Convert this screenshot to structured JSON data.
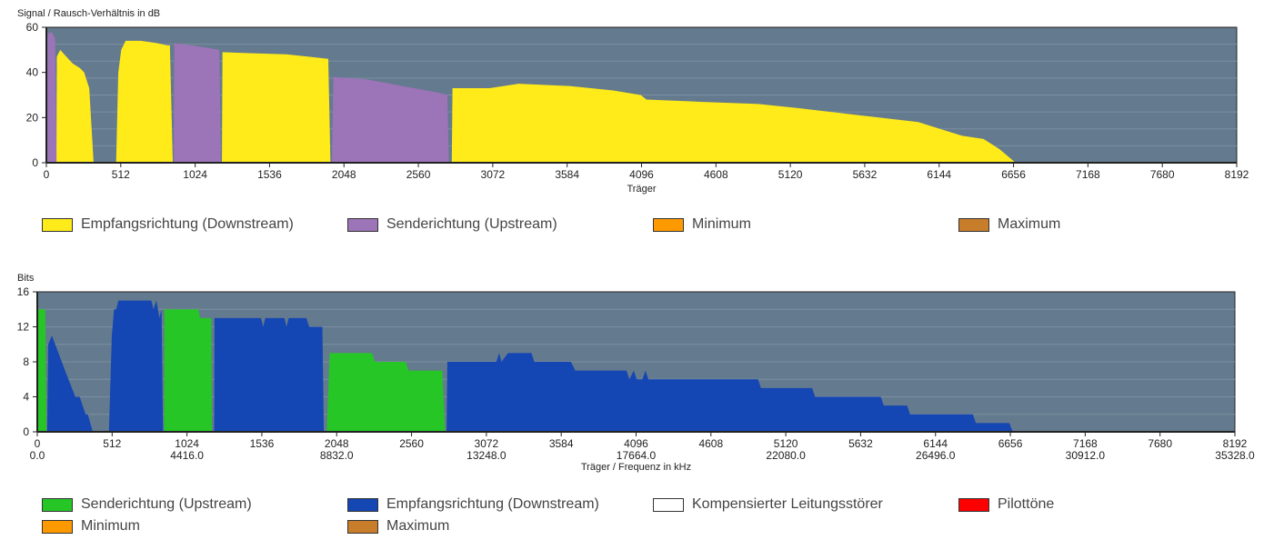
{
  "colors": {
    "plot_bg": "#647a8e",
    "grid": "#7b8fa1"
  },
  "chart_data": [
    {
      "type": "area",
      "title": "Signal / Rausch-Verhältnis in dB",
      "xlabel": "Träger",
      "ylabel": "",
      "xlim": [
        0,
        8192
      ],
      "ylim": [
        0,
        60
      ],
      "xticks": [
        0,
        512,
        1024,
        1536,
        2048,
        2560,
        3072,
        3584,
        4096,
        4608,
        5120,
        5632,
        6144,
        6656,
        7168,
        7680,
        8192
      ],
      "yticks": [
        0,
        20,
        40,
        60
      ],
      "grid": true,
      "series": [
        {
          "name": "Empfangsrichtung (Downstream)",
          "color": "#ffea1a",
          "segments": [
            [
              [
                69,
                0
              ],
              [
                72,
                47
              ],
              [
                95,
                50
              ],
              [
                180,
                44
              ],
              [
                230,
                42
              ],
              [
                260,
                40
              ],
              [
                285,
                35
              ],
              [
                295,
                33
              ],
              [
                325,
                0
              ]
            ],
            [
              [
                480,
                0
              ],
              [
                495,
                40
              ],
              [
                515,
                50
              ],
              [
                545,
                54
              ],
              [
                650,
                54
              ],
              [
                760,
                53
              ],
              [
                830,
                52
              ],
              [
                850,
                52
              ],
              [
                870,
                0
              ]
            ],
            [
              [
                1208,
                0
              ],
              [
                1212,
                49
              ],
              [
                1400,
                48.5
              ],
              [
                1650,
                48
              ],
              [
                1800,
                47
              ],
              [
                1940,
                46
              ],
              [
                1955,
                0
              ]
            ],
            [
              [
                2790,
                0
              ],
              [
                2795,
                33
              ],
              [
                3050,
                33
              ],
              [
                3250,
                35
              ],
              [
                3600,
                34
              ],
              [
                3900,
                32
              ],
              [
                4090,
                30
              ],
              [
                4130,
                28
              ],
              [
                4500,
                27
              ],
              [
                4900,
                26
              ],
              [
                5200,
                24
              ],
              [
                5600,
                21
              ],
              [
                6000,
                18
              ],
              [
                6300,
                12
              ],
              [
                6450,
                10.5
              ],
              [
                6560,
                6
              ],
              [
                6670,
                0
              ]
            ]
          ]
        },
        {
          "name": "Senderichtung (Upstream)",
          "color": "#9c74b8",
          "segments": [
            [
              [
                6,
                0
              ],
              [
                8,
                57
              ],
              [
                35,
                58
              ],
              [
                60,
                55
              ],
              [
                70,
                0
              ]
            ],
            [
              [
                876,
                0
              ],
              [
                880,
                53
              ],
              [
                1000,
                52
              ],
              [
                1100,
                51
              ],
              [
                1190,
                50
              ],
              [
                1200,
                0
              ]
            ],
            [
              [
                1965,
                0
              ],
              [
                1975,
                38
              ],
              [
                2200,
                37
              ],
              [
                2450,
                34
              ],
              [
                2700,
                31
              ],
              [
                2760,
                30
              ],
              [
                2770,
                0
              ]
            ]
          ]
        },
        {
          "name": "Minimum",
          "color": "#ff9900",
          "segments": []
        },
        {
          "name": "Maximum",
          "color": "#c87d2a",
          "segments": []
        }
      ]
    },
    {
      "type": "area",
      "title": "Bits",
      "xlabel": "Träger / Frequenz in kHz",
      "ylabel": "",
      "xlim": [
        0,
        8192
      ],
      "ylim": [
        0,
        16
      ],
      "xticks": [
        0,
        512,
        1024,
        1536,
        2048,
        2560,
        3072,
        3584,
        4096,
        4608,
        5120,
        5632,
        6144,
        6656,
        7168,
        7680,
        8192
      ],
      "xticks2": {
        "0": "0.0",
        "1024": "4416.0",
        "2048": "8832.0",
        "3072": "13248.0",
        "4096": "17664.0",
        "5120": "22080.0",
        "6144": "26496.0",
        "7168": "30912.0",
        "8192": "35328.0"
      },
      "yticks": [
        0,
        4,
        8,
        12,
        16
      ],
      "grid": true,
      "series": [
        {
          "name": "Senderichtung (Upstream)",
          "color": "#26c626",
          "segments": [
            [
              [
                5,
                0
              ],
              [
                6,
                14
              ],
              [
                55,
                14
              ],
              [
                62,
                0
              ]
            ],
            [
              [
                868,
                0
              ],
              [
                870,
                14
              ],
              [
                1100,
                14
              ],
              [
                1115,
                13
              ],
              [
                1190,
                13
              ],
              [
                1195,
                0
              ]
            ],
            [
              [
                1980,
                0
              ],
              [
                2000,
                9
              ],
              [
                2290,
                9
              ],
              [
                2310,
                8
              ],
              [
                2520,
                8
              ],
              [
                2540,
                7
              ],
              [
                2770,
                7
              ],
              [
                2790,
                0
              ]
            ]
          ]
        },
        {
          "name": "Empfangsrichtung (Downstream)",
          "color": "#1446b4",
          "segments": [
            [
              [
                68,
                0
              ],
              [
                75,
                10
              ],
              [
                100,
                11
              ],
              [
                190,
                7
              ],
              [
                260,
                4
              ],
              [
                290,
                4
              ],
              [
                330,
                2
              ],
              [
                345,
                2
              ],
              [
                380,
                0
              ]
            ],
            [
              [
                490,
                0
              ],
              [
                510,
                11
              ],
              [
                525,
                14
              ],
              [
                540,
                14
              ],
              [
                555,
                15
              ],
              [
                780,
                15
              ],
              [
                795,
                14
              ],
              [
                815,
                15
              ],
              [
                835,
                13
              ],
              [
                850,
                14
              ],
              [
                860,
                0
              ]
            ],
            [
              [
                1210,
                0
              ],
              [
                1212,
                13
              ],
              [
                1530,
                13
              ],
              [
                1545,
                12
              ],
              [
                1560,
                13
              ],
              [
                1690,
                13
              ],
              [
                1705,
                12
              ],
              [
                1720,
                13
              ],
              [
                1840,
                13
              ],
              [
                1860,
                12
              ],
              [
                1950,
                12
              ],
              [
                1960,
                0
              ]
            ],
            [
              [
                2800,
                0
              ],
              [
                2805,
                8
              ],
              [
                3140,
                8
              ],
              [
                3160,
                9
              ],
              [
                3175,
                8
              ],
              [
                3220,
                9
              ],
              [
                3380,
                9
              ],
              [
                3400,
                8
              ],
              [
                3650,
                8
              ],
              [
                3680,
                7
              ],
              [
                4030,
                7
              ],
              [
                4050,
                6
              ],
              [
                4080,
                7
              ],
              [
                4100,
                6
              ],
              [
                4140,
                6
              ],
              [
                4160,
                7
              ],
              [
                4180,
                6
              ],
              [
                4930,
                6
              ],
              [
                4950,
                5
              ],
              [
                5300,
                5
              ],
              [
                5320,
                4
              ],
              [
                5770,
                4
              ],
              [
                5790,
                3
              ],
              [
                5950,
                3
              ],
              [
                5970,
                2
              ],
              [
                6400,
                2
              ],
              [
                6420,
                1
              ],
              [
                6650,
                1
              ],
              [
                6660,
                0.5
              ],
              [
                6675,
                0
              ]
            ]
          ]
        },
        {
          "name": "Kompensierter Leitungsstörer",
          "color": "#ffffff",
          "segments": []
        },
        {
          "name": "Pilottöne",
          "color": "#ff0000",
          "segments": []
        },
        {
          "name": "Minimum",
          "color": "#ff9900",
          "segments": []
        },
        {
          "name": "Maximum",
          "color": "#c87d2a",
          "segments": []
        }
      ]
    }
  ]
}
